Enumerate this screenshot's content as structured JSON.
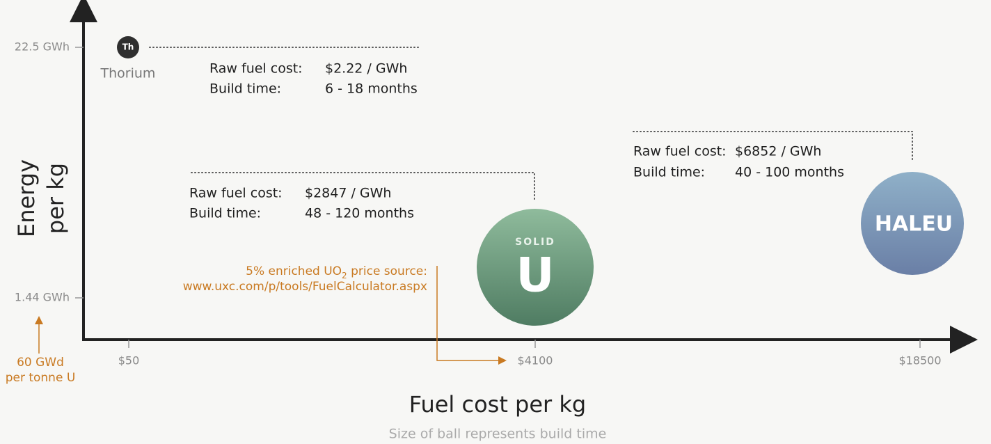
{
  "axes": {
    "y_label": [
      "Energy",
      "per kg"
    ],
    "y_ticks": [
      "22.5 GWh",
      "1.44 GWh"
    ],
    "x_ticks": [
      "$50",
      "$4100",
      "$18500"
    ],
    "x_label": "Fuel cost per kg",
    "subtitle": "Size of ball represents build time"
  },
  "notes": {
    "y_reference": [
      "60 GWd",
      "per tonne U"
    ],
    "price_source": [
      "5% enriched UO",
      "2",
      " price source:",
      "www.uxc.com/p/tools/FuelCalculator.aspx"
    ]
  },
  "fuels": [
    {
      "name": "Thorium",
      "badge": "Th",
      "cost_label": "Raw fuel cost:",
      "cost": "$2.22 / GWh",
      "build_label": "Build time:",
      "build": "6 - 18 months"
    },
    {
      "badge_top": "SOLID",
      "badge": "U",
      "cost_label": "Raw fuel cost:",
      "cost": "$2847 / GWh",
      "build_label": "Build time:",
      "build": "48 - 120 months"
    },
    {
      "badge": "HALEU",
      "cost_label": "Raw fuel cost:",
      "cost": "$6852 / GWh",
      "build_label": "Build time:",
      "build": "40 - 100 months"
    }
  ]
}
